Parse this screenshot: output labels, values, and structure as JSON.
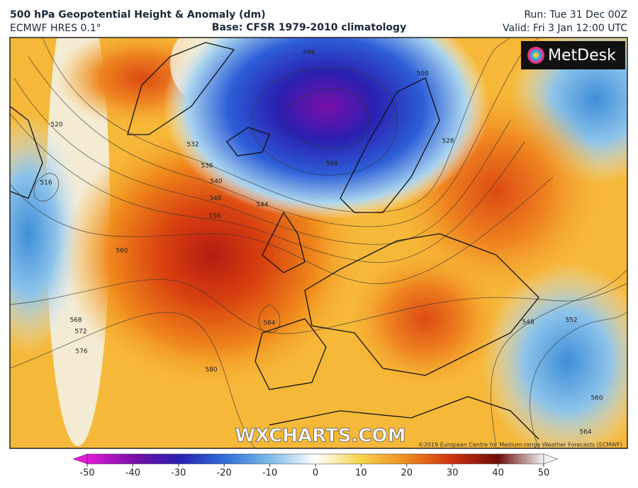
{
  "header": {
    "title": "500 hPa Geopotential Height & Anomaly (dm)",
    "model": "ECMWF HRES 0.1°",
    "base": "Base: CFSR 1979-2010 climatology",
    "run": "Run: Tue 31 Dec 00Z",
    "valid": "Valid: Fri 3 Jan 12:00 UTC"
  },
  "map": {
    "logo": "MetDesk",
    "watermark": "WXCHARTS.COM",
    "copyright": "©2019 European Centre for Medium-range Weather Forecasts (ECMWF)",
    "contour_labels": [
      520,
      516,
      532,
      536,
      540,
      548,
      556,
      560,
      544,
      564,
      568,
      572,
      576,
      580,
      496,
      504,
      508,
      528,
      548,
      552,
      560,
      564
    ]
  },
  "colorbar": {
    "range": [
      -50,
      50
    ],
    "ticks": [
      -50,
      -40,
      -30,
      -20,
      -10,
      0,
      10,
      20,
      30,
      40,
      50
    ]
  }
}
